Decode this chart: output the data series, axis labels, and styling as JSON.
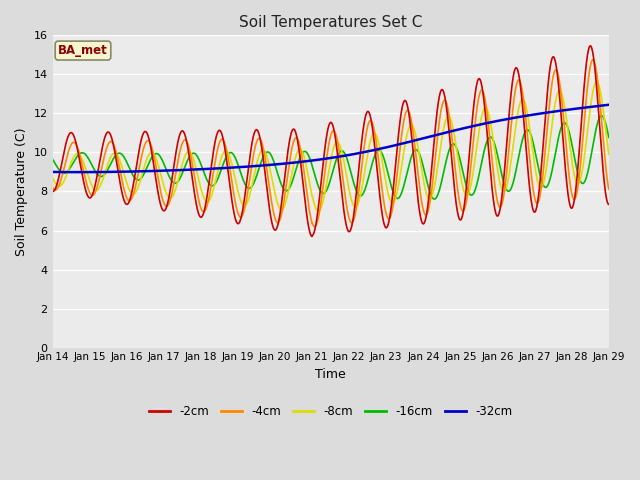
{
  "title": "Soil Temperatures Set C",
  "xlabel": "Time",
  "ylabel": "Soil Temperature (C)",
  "background_color": "#dcdcdc",
  "plot_bg_color": "#ebebeb",
  "ylim": [
    0,
    16
  ],
  "yticks": [
    0,
    2,
    4,
    6,
    8,
    10,
    12,
    14,
    16
  ],
  "annotation": "BA_met",
  "annotation_color": "#8B0000",
  "annotation_bg": "#f5f5d0",
  "series": {
    "-2cm": {
      "color": "#cc0000",
      "lw": 1.2
    },
    "-4cm": {
      "color": "#ff8800",
      "lw": 1.2
    },
    "-8cm": {
      "color": "#dddd00",
      "lw": 1.2
    },
    "-16cm": {
      "color": "#00bb00",
      "lw": 1.2
    },
    "-32cm": {
      "color": "#0000cc",
      "lw": 1.8
    }
  },
  "x_tick_labels": [
    "Jan 14",
    "Jan 15",
    "Jan 16",
    "Jan 17",
    "Jan 18",
    "Jan 19",
    "Jan 20",
    "Jan 21",
    "Jan 22",
    "Jan 23",
    "Jan 24",
    "Jan 25",
    "Jan 26",
    "Jan 27",
    "Jan 28",
    "Jan 29"
  ],
  "n_days": 15,
  "pts": 288
}
